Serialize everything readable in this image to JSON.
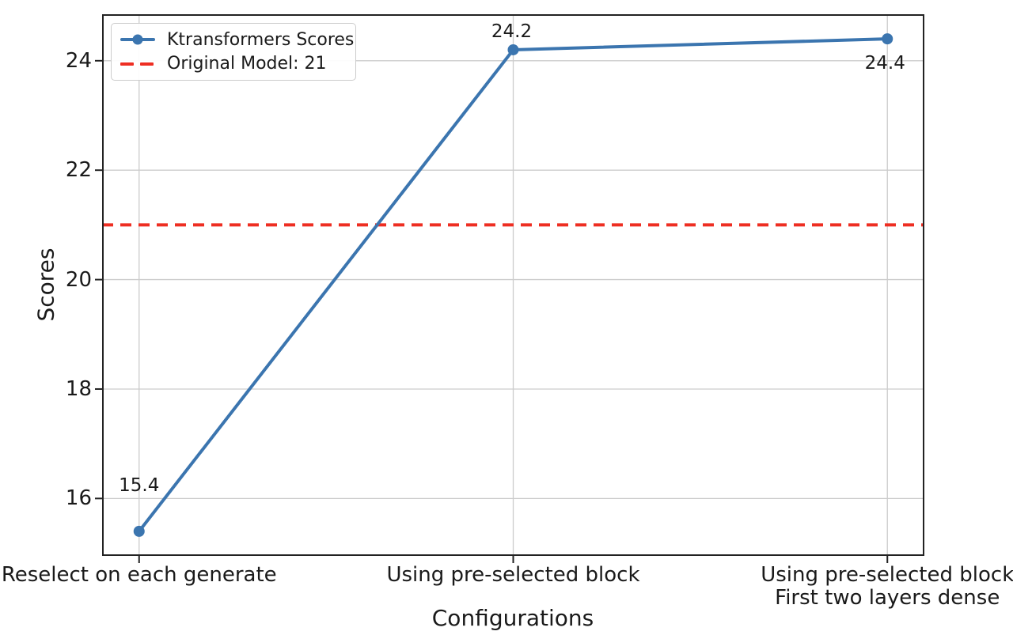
{
  "chart_data": {
    "type": "line",
    "title": "",
    "xlabel": "Configurations",
    "ylabel": "Scores",
    "categories": [
      "Reselect on each generate",
      "Using pre-selected block",
      "Using pre-selected block\nFirst two layers dense"
    ],
    "series": [
      {
        "name": "Ktransformers Scores",
        "values": [
          15.4,
          24.2,
          24.4
        ],
        "color": "#3b75af",
        "marker": "circle",
        "point_labels": [
          "15.4",
          "24.2",
          "24.4"
        ],
        "point_label_offsets": [
          {
            "dx": 0,
            "dy": -51
          },
          {
            "dx": -2,
            "dy": -16
          },
          {
            "dx": -3,
            "dy": 38
          }
        ]
      }
    ],
    "hline": {
      "label": "Original Model: 21",
      "value": 21,
      "color": "#ee2e22",
      "style": "dashed"
    },
    "yticks": [
      16,
      18,
      20,
      22,
      24
    ],
    "ylim": [
      14.95,
      24.85
    ],
    "x_margin_frac": 0.045,
    "grid": true,
    "legend": {
      "position": "upper-left",
      "items": [
        {
          "label": "Ktransformers Scores",
          "swatch": "line-marker"
        },
        {
          "label": "Original Model: 21",
          "swatch": "dashed-line"
        }
      ]
    }
  }
}
